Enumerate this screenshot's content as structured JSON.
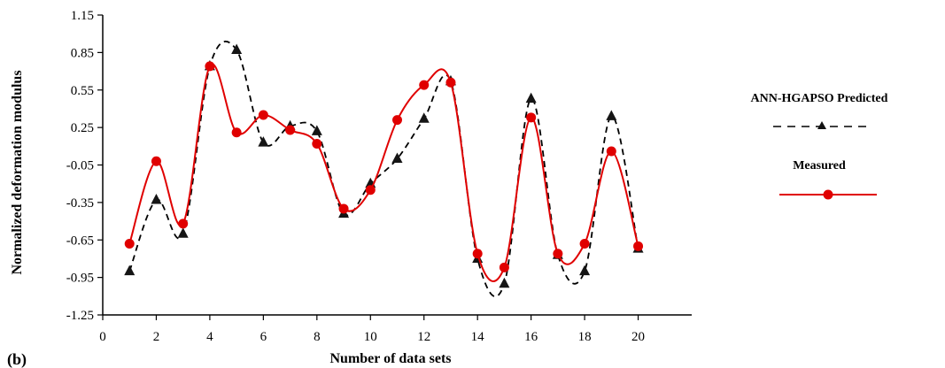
{
  "chart_data": {
    "type": "line",
    "xlabel": "Number of data sets",
    "ylabel": "Normalized deformation modulus",
    "xlim": [
      0,
      22
    ],
    "ylim": [
      -1.25,
      1.15
    ],
    "xticks": [
      0,
      2,
      4,
      6,
      8,
      10,
      12,
      14,
      16,
      18,
      20
    ],
    "xtick_labels": [
      "0",
      "2",
      "4",
      "6",
      "8",
      "10",
      "12",
      "14",
      "16",
      "18",
      "20"
    ],
    "yticks": [
      1.15,
      0.85,
      0.55,
      0.25,
      -0.05,
      -0.35,
      -0.65,
      -0.95,
      -1.25
    ],
    "ytick_labels": [
      "1.15",
      "0.85",
      "0.55",
      "0.25",
      "-0.05",
      "-0.35",
      "-0.65",
      "-0.95",
      "-1.25"
    ],
    "grid": false,
    "legend_position": "right",
    "panel_label": "(b)",
    "x": [
      1,
      2,
      3,
      4,
      5,
      6,
      7,
      8,
      9,
      10,
      11,
      12,
      13,
      14,
      15,
      16,
      17,
      18,
      19,
      20
    ],
    "series": [
      {
        "name": "ANN-HGAPSO Predicted",
        "color": "#000000",
        "line_style": "dashed",
        "marker": "triangle",
        "values": [
          -0.9,
          -0.33,
          -0.6,
          0.74,
          0.87,
          0.13,
          0.26,
          0.22,
          -0.44,
          -0.2,
          0.0,
          0.32,
          0.62,
          -0.8,
          -1.0,
          0.48,
          -0.77,
          -0.9,
          0.34,
          -0.72
        ]
      },
      {
        "name": "Measured",
        "color": "#e00000",
        "line_style": "solid",
        "marker": "circle",
        "values": [
          -0.68,
          -0.02,
          -0.52,
          0.74,
          0.21,
          0.35,
          0.23,
          0.12,
          -0.4,
          -0.25,
          0.31,
          0.59,
          0.61,
          -0.76,
          -0.87,
          0.33,
          -0.76,
          -0.68,
          0.06,
          -0.7
        ]
      }
    ]
  }
}
